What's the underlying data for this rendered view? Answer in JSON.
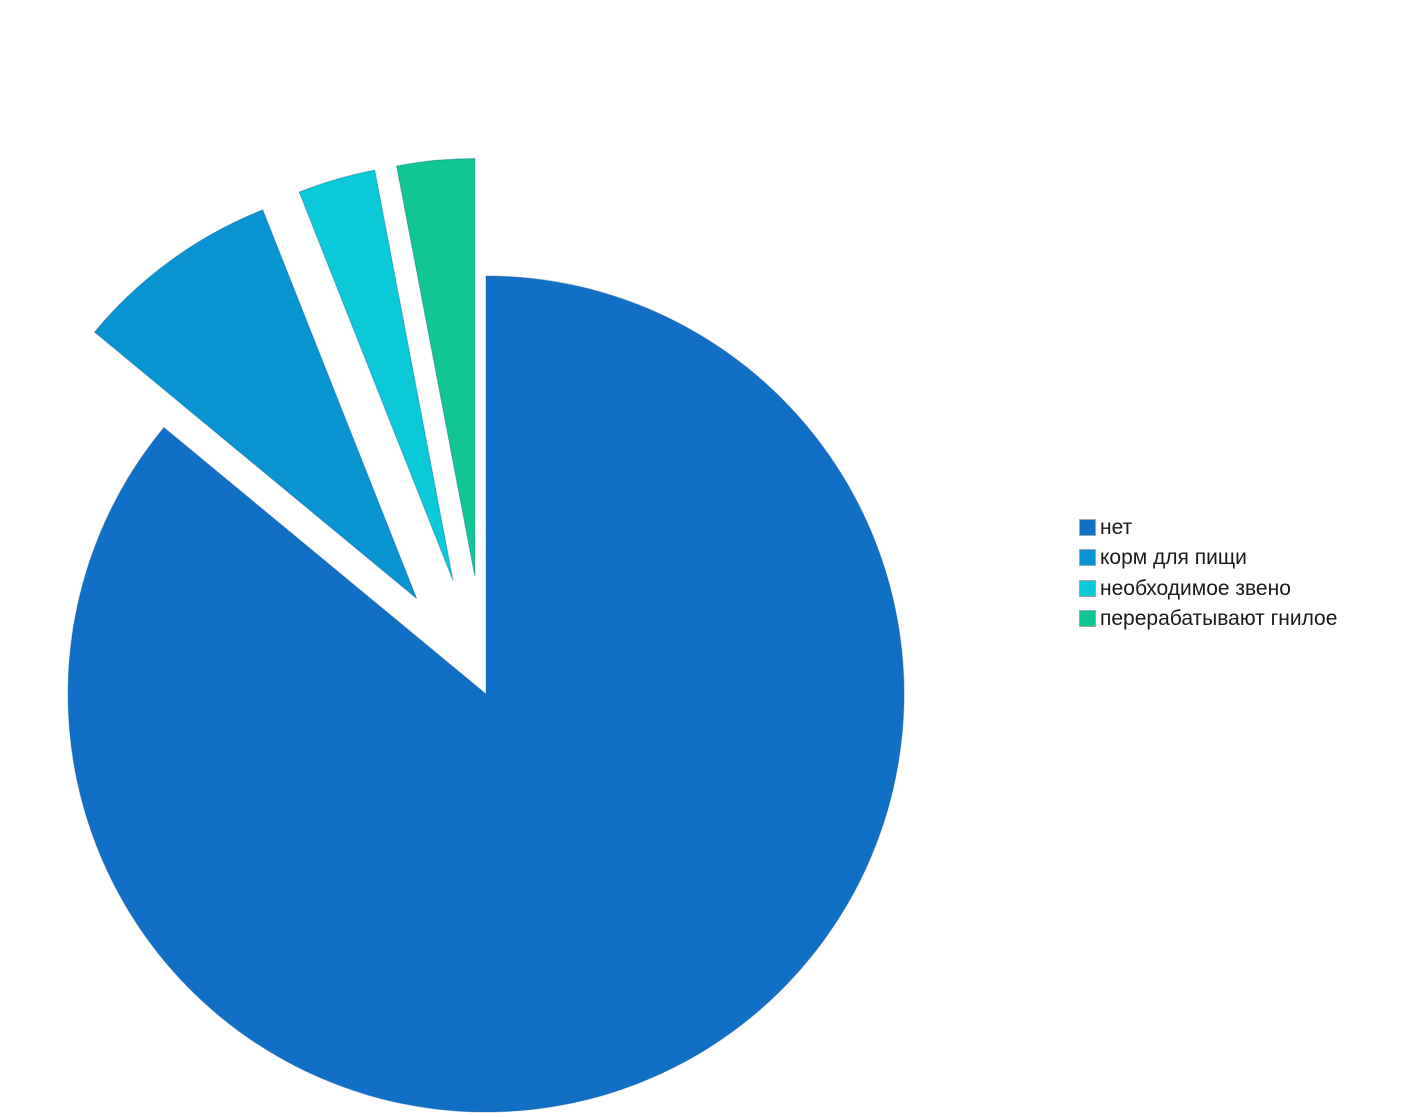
{
  "chart_data": {
    "type": "pie",
    "exploded": true,
    "start_angle": "12 o'clock, clockwise",
    "legend_position": "right",
    "slices": [
      {
        "label": "нет",
        "value": 86,
        "color": "#126fc6"
      },
      {
        "label": "корм для пищи",
        "value": 8,
        "color": "#0794d1"
      },
      {
        "label": "необходимое звено",
        "value": 3,
        "color": "#0ac9d8"
      },
      {
        "label": "перерабатывают гнилое",
        "value": 3,
        "color": "#12c693"
      }
    ]
  }
}
